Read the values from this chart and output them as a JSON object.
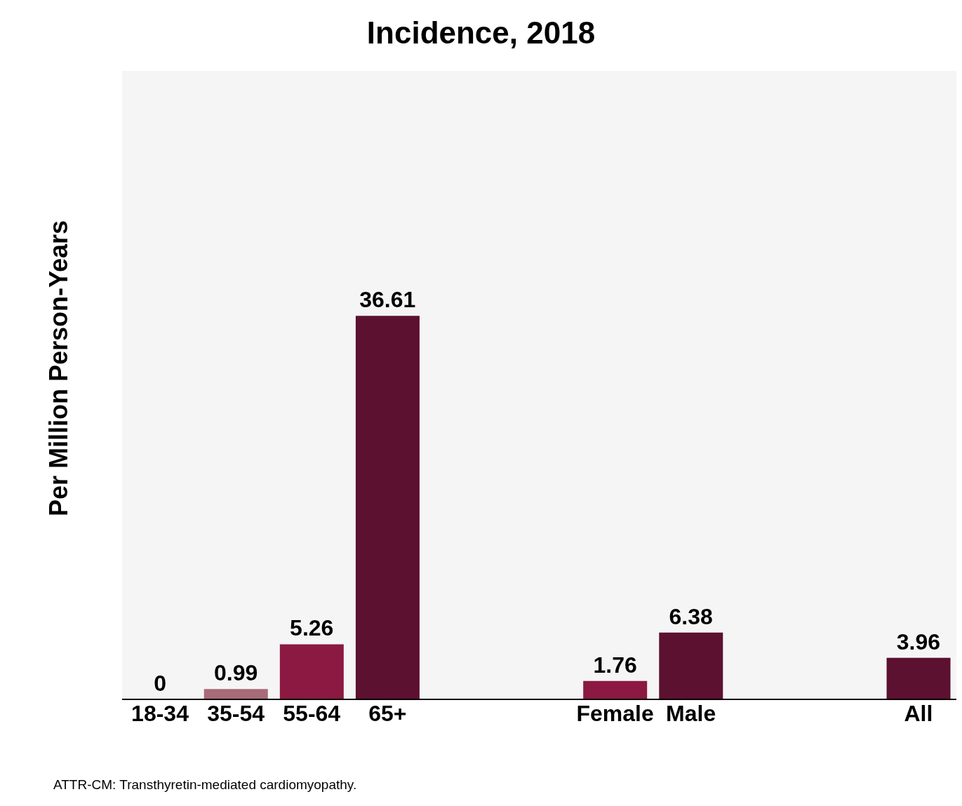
{
  "chart_data": {
    "type": "bar",
    "title": "Incidence, 2018",
    "ylabel": "Per Million Person-Years",
    "categories": [
      "18-34",
      "35-54",
      "55-64",
      "65+",
      null,
      null,
      "Female",
      "Male",
      null,
      null,
      "All"
    ],
    "values": [
      0,
      0.99,
      5.26,
      36.61,
      null,
      null,
      1.76,
      6.38,
      null,
      null,
      3.96
    ],
    "colors": [
      "#a86b78",
      "#a86b78",
      "#8b1942",
      "#5c1130",
      null,
      null,
      "#8b1942",
      "#5c1130",
      null,
      null,
      "#5c1130"
    ],
    "ylim": [
      0,
      60
    ],
    "tick_labels": "x",
    "data_labels": true,
    "grid": false,
    "legend": false,
    "annotations": [
      "ATTR-CM: Transthyretin-mediated cardiomyopathy."
    ]
  }
}
